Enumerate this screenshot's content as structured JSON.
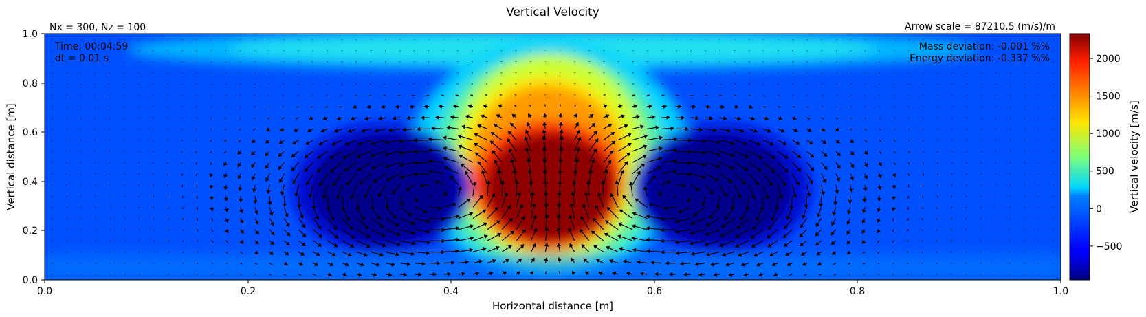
{
  "chart_data": {
    "type": "heatmap",
    "title": "Vertical Velocity",
    "xlabel": "Horizontal distance [m]",
    "ylabel": "Vertical distance [m]",
    "xlim": [
      0.0,
      1.0
    ],
    "ylim": [
      0.0,
      1.0
    ],
    "x_ticks": [
      "0.0",
      "0.2",
      "0.4",
      "0.6",
      "0.8",
      "1.0"
    ],
    "y_ticks": [
      "0.0",
      "0.2",
      "0.4",
      "0.6",
      "0.8",
      "1.0"
    ],
    "colorbar": {
      "label": "Vertical velocity [m/s]",
      "colormap": "jet",
      "range": [
        -950,
        2330
      ],
      "ticks": [
        "−500",
        "0",
        "500",
        "1000",
        "1500",
        "2000"
      ],
      "tick_values": [
        -500,
        0,
        500,
        1000,
        1500,
        2000
      ]
    },
    "field_features": [
      {
        "kind": "updraft",
        "x_center": 0.5,
        "z_center": 0.35,
        "value": 2300
      },
      {
        "kind": "downdraft",
        "x_center": 0.33,
        "z_center": 0.35,
        "value": -950
      },
      {
        "kind": "downdraft",
        "x_center": 0.67,
        "z_center": 0.35,
        "value": -950
      }
    ],
    "grid": false
  },
  "annotations": {
    "grid_size": "Nx = 300, Nz = 100",
    "arrow_scale": "Arrow scale = 87210.5 (m/s)/m",
    "time": "Time: 00:04:59",
    "dt": "dt = 0.01 s",
    "mass_deviation": "Mass deviation: -0.001 %%",
    "energy_deviation": "Energy deviation: -0.337 %%"
  }
}
